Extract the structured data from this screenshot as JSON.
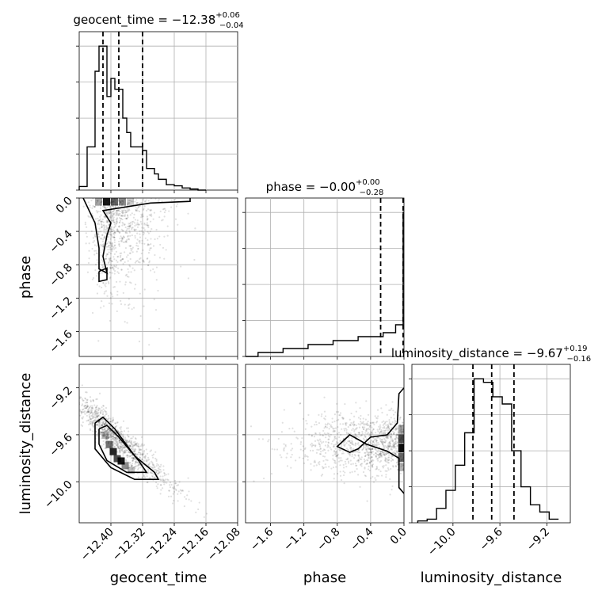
{
  "chart_data": {
    "type": "corner",
    "parameters": [
      "geocent_time",
      "phase",
      "luminosity_distance"
    ],
    "titles": [
      {
        "name": "geocent_time",
        "prefix": "geocent_time = ",
        "median": "−12.38",
        "plus": "+0.06",
        "minus": "−0.04"
      },
      {
        "name": "phase",
        "prefix": "phase = ",
        "median": "−0.00",
        "plus": "+0.00",
        "minus": "−0.28"
      },
      {
        "name": "luminosity_distance",
        "prefix": "luminosity_distance = ",
        "median": "−9.67",
        "plus": "+0.19",
        "minus": "−0.16"
      }
    ],
    "axis_labels": {
      "x": [
        "geocent_time",
        "phase",
        "luminosity_distance"
      ],
      "y": [
        "phase",
        "luminosity_distance"
      ]
    },
    "ranges": {
      "geocent_time": [
        -12.48,
        -12.08
      ],
      "phase": [
        -1.9,
        0.0
      ],
      "luminosity_distance": [
        -10.35,
        -9.0
      ]
    },
    "ticks": {
      "geocent_time": {
        "values": [
          -12.4,
          -12.32,
          -12.24,
          -12.16,
          -12.08
        ],
        "labels": [
          "−12.40",
          "−12.32",
          "−12.24",
          "−12.16",
          "−12.08"
        ]
      },
      "phase": {
        "values": [
          -1.6,
          -1.2,
          -0.8,
          -0.4,
          0.0
        ],
        "labels": [
          "−1.6",
          "−1.2",
          "−0.8",
          "−0.4",
          "0.0"
        ]
      },
      "phase_y": {
        "values": [
          -1.6,
          -1.2,
          -0.8,
          -0.4,
          0.0
        ],
        "labels": [
          "−1.6",
          "−1.2",
          "−0.8",
          "−0.4",
          "0.0"
        ]
      },
      "luminosity_distance": {
        "values": [
          -10.0,
          -9.6,
          -9.2
        ],
        "labels": [
          "−10.0",
          "−9.6",
          "−9.2"
        ]
      }
    },
    "histograms": {
      "geocent_time": {
        "bin_edges": [
          -12.48,
          -12.46,
          -12.44,
          -12.43,
          -12.42,
          -12.41,
          -12.4,
          -12.39,
          -12.38,
          -12.37,
          -12.36,
          -12.35,
          -12.34,
          -12.33,
          -12.32,
          -12.31,
          -12.3,
          -12.29,
          -12.28,
          -12.26,
          -12.24,
          -12.22,
          -12.2,
          -12.18,
          -12.16
        ],
        "counts": [
          1,
          12,
          33,
          40,
          40,
          26,
          31,
          28,
          28,
          20,
          16,
          12,
          12,
          12,
          11,
          6,
          6,
          4.5,
          3,
          1.5,
          1.2,
          0.6,
          0.3,
          0
        ],
        "quantiles": [
          -12.42,
          -12.38,
          -12.32
        ]
      },
      "phase": {
        "bin_edges": [
          -1.9,
          -1.75,
          -1.6,
          -1.45,
          -1.3,
          -1.15,
          -1.0,
          -0.85,
          -0.7,
          -0.55,
          -0.4,
          -0.25,
          -0.1,
          -0.01,
          0.0
        ],
        "counts": [
          0,
          1,
          1,
          2,
          2,
          3,
          3,
          4,
          4,
          5,
          5,
          6,
          8,
          180
        ],
        "quantiles": [
          -0.28,
          -0.01,
          0.0
        ]
      },
      "luminosity_distance": {
        "bin_edges": [
          -10.3,
          -10.22,
          -10.14,
          -10.06,
          -9.98,
          -9.9,
          -9.82,
          -9.74,
          -9.66,
          -9.58,
          -9.5,
          -9.42,
          -9.34,
          -9.26,
          -9.18,
          -9.1
        ],
        "counts": [
          0.5,
          1,
          4,
          9,
          16,
          25,
          40,
          39,
          35,
          33,
          20,
          10,
          5,
          3,
          1
        ],
        "quantiles": [
          -9.83,
          -9.67,
          -9.48
        ]
      }
    },
    "joint": [
      {
        "x": "geocent_time",
        "y": "phase",
        "dense_center": [
          -12.4,
          -0.02
        ],
        "spread_x": 0.05,
        "spread_y": 0.55
      },
      {
        "x": "geocent_time",
        "y": "luminosity_distance",
        "dense_center": [
          -12.38,
          -9.75
        ],
        "slope": -3.0,
        "spread": 0.06
      },
      {
        "x": "phase",
        "y": "luminosity_distance",
        "dense_center": [
          -0.02,
          -9.7
        ],
        "spread_x": 0.45,
        "spread_y": 0.12
      }
    ],
    "grid": true,
    "line_color": "#000000",
    "density_color": "#000000"
  }
}
